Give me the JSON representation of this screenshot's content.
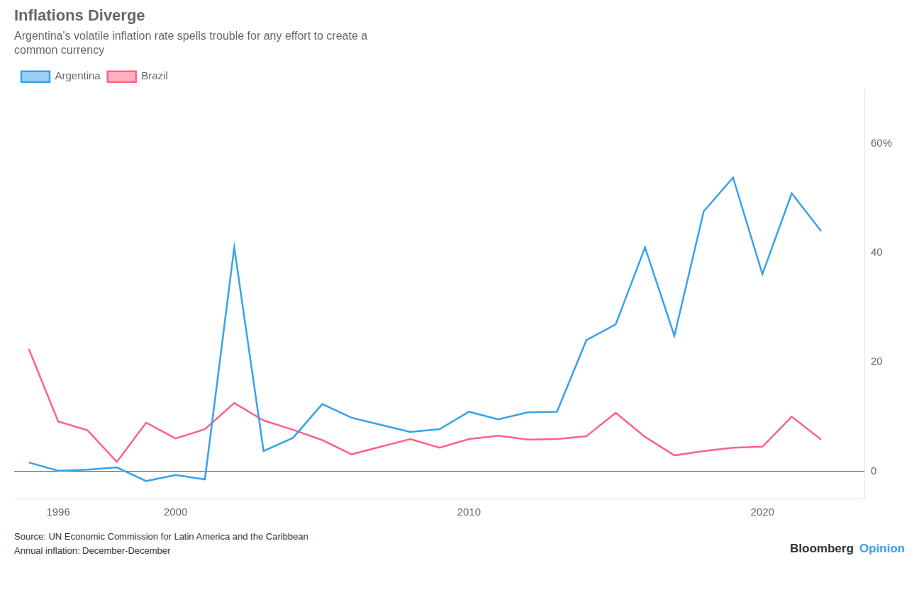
{
  "chart_data": {
    "type": "line",
    "title": "Inflations Diverge",
    "subtitle": "Argentina's volatile inflation rate spells trouble for any effort to create a\ncommon currency",
    "annotations": [
      "Source: UN Economic Commission for Latin America and the Caribbean",
      "Annual inflation: December-December",
      "Bloomberg",
      "Opinion"
    ],
    "x": [
      1995,
      1996,
      1997,
      1998,
      1999,
      2000,
      2001,
      2002,
      2003,
      2004,
      2005,
      2006,
      2007,
      2008,
      2009,
      2010,
      2011,
      2012,
      2013,
      2014,
      2015,
      2016,
      2017,
      2018,
      2019,
      2020,
      2021,
      2022
    ],
    "series": [
      {
        "name": "Argentina",
        "values": [
          1.6,
          0.1,
          0.3,
          0.7,
          -1.8,
          -0.7,
          -1.5,
          41.0,
          3.7,
          6.1,
          12.3,
          9.8,
          8.5,
          7.2,
          7.7,
          10.9,
          9.5,
          10.8,
          10.9,
          24.0,
          26.9,
          41.0,
          24.8,
          47.6,
          53.8,
          36.1,
          50.9,
          44.0
        ]
      },
      {
        "name": "Brazil",
        "values": [
          22.4,
          9.1,
          7.5,
          1.7,
          8.9,
          6.0,
          7.7,
          12.5,
          9.3,
          7.6,
          5.7,
          3.1,
          4.5,
          5.9,
          4.3,
          5.9,
          6.5,
          5.8,
          5.9,
          6.4,
          10.7,
          6.3,
          2.9,
          3.7,
          4.3,
          4.5,
          10.0,
          5.8
        ]
      }
    ],
    "xlim": [
      1994.5,
      2023.5
    ],
    "xticks": [
      1996,
      2000,
      2010,
      2020
    ],
    "ylim": [
      -5,
      70
    ],
    "yticks": [
      0,
      20,
      40,
      {
        "value": 60,
        "label": "60%"
      }
    ],
    "grid": false,
    "legend": "top"
  }
}
